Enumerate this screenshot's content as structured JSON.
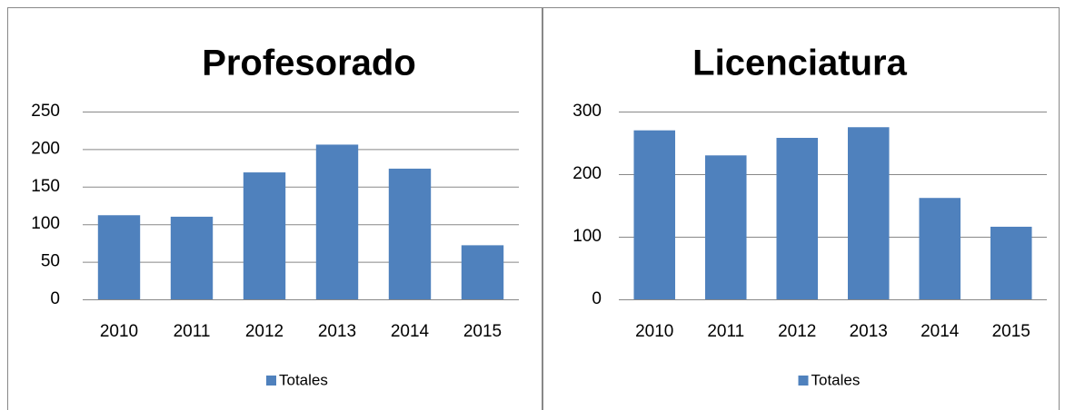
{
  "chart_data": [
    {
      "type": "bar",
      "title": "Profesorado",
      "categories": [
        "2010",
        "2011",
        "2012",
        "2013",
        "2014",
        "2015"
      ],
      "series": [
        {
          "name": "Totales",
          "color": "#4f81bd",
          "values": [
            112,
            110,
            169,
            206,
            174,
            72
          ]
        }
      ],
      "ylim": [
        0,
        250
      ],
      "yticks": [
        0,
        50,
        100,
        150,
        200,
        250
      ],
      "grid": true,
      "legend": "bottom"
    },
    {
      "type": "bar",
      "title": "Licenciatura",
      "categories": [
        "2010",
        "2011",
        "2012",
        "2013",
        "2014",
        "2015"
      ],
      "series": [
        {
          "name": "Totales",
          "color": "#4f81bd",
          "values": [
            270,
            230,
            258,
            275,
            162,
            116
          ]
        }
      ],
      "ylim": [
        0,
        300
      ],
      "yticks": [
        0,
        100,
        200,
        300
      ],
      "grid": true,
      "legend": "bottom"
    }
  ]
}
